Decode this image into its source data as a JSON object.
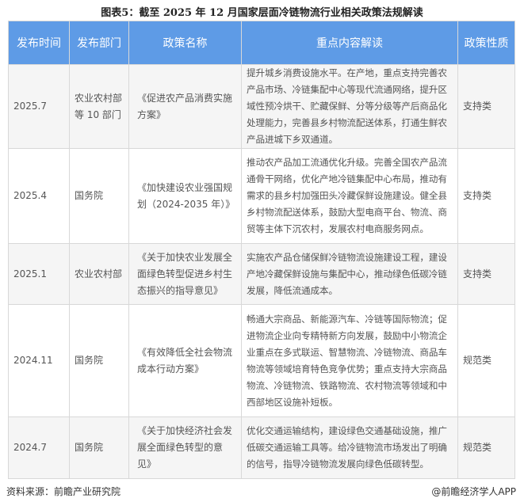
{
  "title": "图表5：截至 2025 年 12 月国家层面冷链物流行业相关政策法规解读",
  "header_color": "#5e9be6",
  "columns": [
    "发布时间",
    "发布部门",
    "政策名称",
    "重点内容解读",
    "政策性质"
  ],
  "rows": [
    {
      "date": "2025.7",
      "dept": "农业农村部等 10 部门",
      "name": "《促进农产品消费实施方案》",
      "content": "提升城乡消费设施水平。在产地，重点支持完善农产品市场、冷链集配中心等现代流通网络，提升区域性预冷烘干、贮藏保鲜、分等分级等产后商品化处理能力，完善县乡村物流配送体系，打通生鲜农产品进城下乡双通道。",
      "type": "支持类"
    },
    {
      "date": "2025.4",
      "dept": "国务院",
      "name": "《加快建设农业强国规划（2024-2035 年）》",
      "content": "推动农产品加工流通优化升级。完善全国农产品流通骨干网络，优化产地冷链集配中心布局，推动有需求的县乡村加强田头冷藏保鲜设施建设。健全县乡村物流配送体系，鼓励大型电商平台、物流、商贸等主体下沉农村，发展农村电商服务网点。",
      "type": "支持类"
    },
    {
      "date": "2025.1",
      "dept": "农业农村部",
      "name": "《关于加快农业发展全面绿色转型促进乡村生态振兴的指导意见》",
      "content": "实施农产品仓储保鲜冷链物流设施建设工程，建设产地冷藏保鲜设施与集配中心，推动绿色低碳冷链发展，降低流通成本。",
      "type": "支持类"
    },
    {
      "date": "2024.11",
      "dept": "国务院",
      "name": "《有效降低全社会物流成本行动方案》",
      "content": "畅通大宗商品、新能源汽车、冷链等国际物流；促进物流企业向专精特新方向发展，鼓励中小物流企业重点在多式联运、智慧物流、冷链物流、商品车物流等领域培育特色竞争优势；重点支持大宗商品物流、冷链物流、铁路物流、农村物流等领域和中西部地区设施补短板。",
      "type": "规范类"
    },
    {
      "date": "2024.7",
      "dept": "国务院",
      "name": "《关于加快经济社会发展全面绿色转型的意见》",
      "content": "优化交通运输结构，建设绿色交通基础设施，推广低碳交通运输工具等。给冷链物流市场发出了明确的信号，指导冷链物流发展向绿色低碳转型。",
      "type": "规范类"
    }
  ],
  "footer": {
    "source": "资料来源：前瞻产业研究院",
    "brand": "@前瞻经济学人APP"
  }
}
